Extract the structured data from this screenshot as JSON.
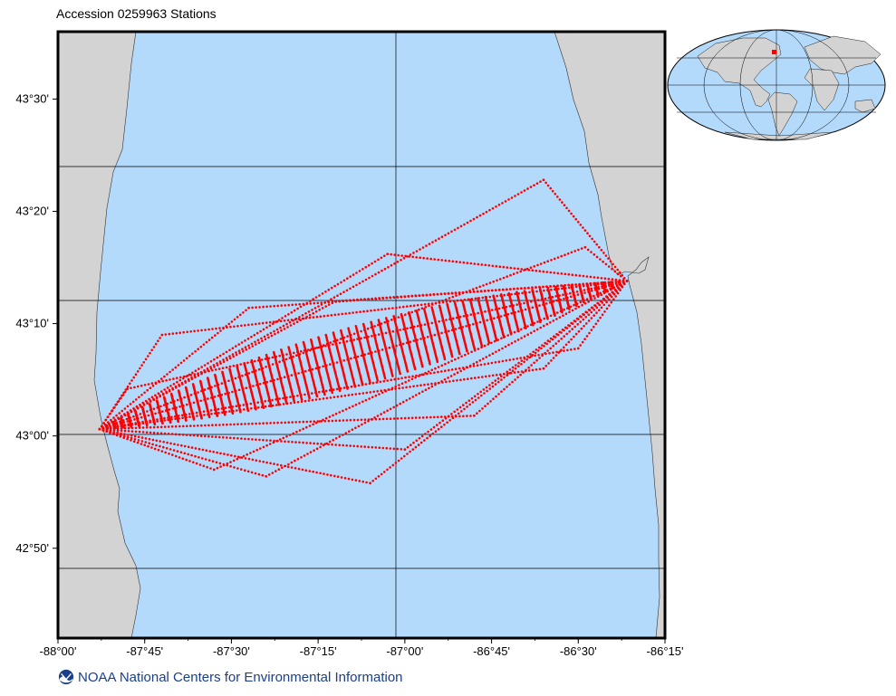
{
  "title": "Accession 0259963 Stations",
  "footer": {
    "agency_text": "NOAA National Centers for Environmental Information",
    "logo_icon": "noaa-logo-icon"
  },
  "colors": {
    "water": "#b3d9fb",
    "land": "#d3d3d3",
    "stations": "#ff0000",
    "footer_text": "#1b3f8b"
  },
  "map": {
    "lon_range": [
      -88.0,
      -86.25
    ],
    "lat_range": [
      42.7,
      43.6
    ],
    "lon_ticks": [
      "-88°00'",
      "-87°45'",
      "-87°30'",
      "-87°15'",
      "-87°00'",
      "-86°45'",
      "-86°30'",
      "-86°15'"
    ],
    "lat_ticks": [
      "42°50'",
      "43°00'",
      "43°10'",
      "43°20'",
      "43°30'"
    ],
    "inset": "world-locator-map"
  },
  "chart_data": {
    "type": "scatter",
    "title": "Accession 0259963 Stations",
    "xlabel": "",
    "ylabel": "",
    "xlim": [
      -88.0,
      -86.25
    ],
    "ylim": [
      42.7,
      43.6
    ],
    "grid": true,
    "x_ticks": [
      -88.0,
      -87.75,
      -87.5,
      -87.25,
      -87.0,
      -86.75,
      -86.5,
      -86.25
    ],
    "y_ticks": [
      42.8333,
      43.0,
      43.1667,
      43.3333,
      43.5
    ],
    "series": [
      {
        "points_note_start": [
          -87.88,
          43.01
        ],
        "end": [
          -86.36,
          43.23
        ],
        "tracks": [
          {
            "via": [
              -86.6,
              43.38
            ],
            "x": [
              -87.88,
              -86.6,
              -86.36
            ],
            "y": [
              43.01,
              43.38,
              43.23
            ]
          },
          {
            "x": [
              -87.88,
              -87.05,
              -86.36
            ],
            "y": [
              43.01,
              43.27,
              43.23
            ]
          },
          {
            "x": [
              -87.88,
              -86.48,
              -86.36
            ],
            "y": [
              43.01,
              43.28,
              43.23
            ]
          },
          {
            "x": [
              -87.88,
              -87.45,
              -86.36
            ],
            "y": [
              43.01,
              43.19,
              43.23
            ]
          },
          {
            "x": [
              -87.88,
              -87.7,
              -86.36
            ],
            "y": [
              43.01,
              43.15,
              43.23
            ]
          },
          {
            "x": [
              -87.88,
              -87.1,
              -86.36
            ],
            "y": [
              43.01,
              42.93,
              43.23
            ]
          },
          {
            "x": [
              -87.88,
              -87.55,
              -86.36
            ],
            "y": [
              43.01,
              42.95,
              43.23
            ]
          },
          {
            "x": [
              -87.88,
              -87.4,
              -86.36
            ],
            "y": [
              43.01,
              42.94,
              43.23
            ]
          },
          {
            "x": [
              -87.88,
              -87.0,
              -86.36
            ],
            "y": [
              43.01,
              42.98,
              43.23
            ]
          },
          {
            "x": [
              -87.88,
              -86.6,
              -86.36
            ],
            "y": [
              43.01,
              43.1,
              43.23
            ]
          },
          {
            "x": [
              -87.88,
              -86.5,
              -86.36
            ],
            "y": [
              43.01,
              43.13,
              43.23
            ]
          },
          {
            "x": [
              -87.88,
              -87.2,
              -86.36
            ],
            "y": [
              43.01,
              43.2,
              43.23
            ]
          },
          {
            "x": [
              -87.88,
              -86.36
            ],
            "y": [
              43.01,
              43.23
            ]
          },
          {
            "x": [
              -87.88,
              -87.8,
              -86.36
            ],
            "y": [
              43.01,
              43.07,
              43.23
            ]
          },
          {
            "x": [
              -87.88,
              -86.8,
              -86.36
            ],
            "y": [
              43.01,
              43.03,
              43.23
            ]
          }
        ]
      }
    ]
  }
}
